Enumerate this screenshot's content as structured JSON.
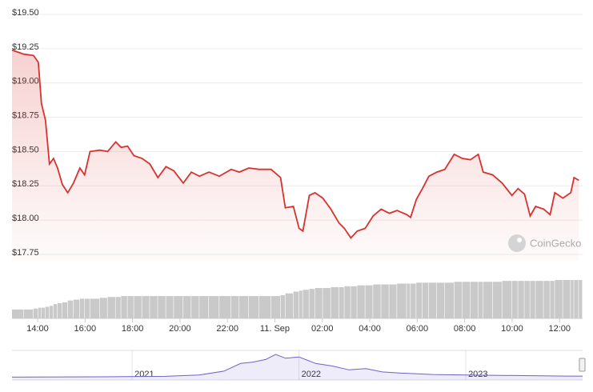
{
  "chart_data": [
    {
      "type": "line",
      "color": "#d8322e",
      "watermark": "CoinGecko",
      "grid": true,
      "x": [
        12.92,
        13.42,
        13.83,
        14.03,
        14.16,
        14.33,
        14.5,
        14.67,
        14.84,
        15.04,
        15.27,
        15.51,
        15.78,
        15.98,
        16.21,
        16.62,
        16.95,
        17.29,
        17.52,
        17.79,
        18.06,
        18.4,
        18.73,
        19.07,
        19.41,
        19.74,
        20.14,
        20.48,
        20.82,
        21.22,
        21.66,
        22.16,
        22.5,
        22.9,
        23.34,
        23.84,
        24.24,
        24.44,
        24.78,
        25.02,
        25.18,
        25.45,
        25.69,
        26.02,
        26.36,
        26.7,
        26.93,
        27.2,
        27.47,
        27.81,
        28.14,
        28.48,
        28.82,
        29.15,
        29.56,
        29.72,
        29.96,
        30.22,
        30.49,
        30.83,
        31.16,
        31.56,
        31.9,
        32.24,
        32.57,
        32.78,
        33.18,
        33.58,
        33.99,
        34.25,
        34.52,
        34.76,
        34.99,
        35.33,
        35.6,
        35.8,
        36.14,
        36.47,
        36.61,
        36.81
      ],
      "values": [
        19.24,
        19.21,
        19.2,
        19.15,
        18.85,
        18.73,
        18.41,
        18.45,
        18.38,
        18.26,
        18.2,
        18.27,
        18.38,
        18.33,
        18.5,
        18.51,
        18.5,
        18.57,
        18.53,
        18.54,
        18.47,
        18.45,
        18.41,
        18.31,
        18.39,
        18.36,
        18.27,
        18.35,
        18.32,
        18.35,
        18.32,
        18.37,
        18.35,
        18.38,
        18.37,
        18.37,
        18.31,
        18.09,
        18.1,
        17.94,
        17.92,
        18.18,
        18.2,
        18.16,
        18.08,
        17.98,
        17.94,
        17.87,
        17.92,
        17.94,
        18.03,
        18.08,
        18.05,
        18.07,
        18.04,
        18.02,
        18.15,
        18.23,
        18.32,
        18.35,
        18.37,
        18.48,
        18.45,
        18.44,
        18.48,
        18.35,
        18.33,
        18.27,
        18.18,
        18.23,
        18.19,
        18.03,
        18.1,
        18.08,
        18.04,
        18.2,
        18.16,
        18.2,
        18.31,
        18.29
      ],
      "volume": {
        "color": "#c9c9c9",
        "values": [
          10,
          10,
          11,
          12,
          12,
          13,
          14,
          16,
          17,
          18,
          20,
          21,
          22,
          22,
          22,
          23,
          24,
          24,
          25,
          25,
          25,
          25,
          25,
          25,
          25,
          25,
          25,
          25,
          25,
          25,
          25,
          25,
          25,
          25,
          25,
          25,
          26,
          28,
          30,
          31,
          32,
          33,
          34,
          34,
          35,
          35,
          36,
          36,
          37,
          37,
          38,
          38,
          38,
          39,
          39,
          39,
          40,
          40,
          40,
          40,
          40,
          41,
          41,
          41,
          41,
          41,
          41,
          42,
          42,
          42,
          42,
          42,
          42,
          42,
          42,
          43,
          43,
          43,
          43,
          43
        ]
      },
      "xlim": [
        12.92,
        36.97
      ],
      "xticks": [
        {
          "value": 14,
          "label": "14:00"
        },
        {
          "value": 16,
          "label": "16:00"
        },
        {
          "value": 18,
          "label": "18:00"
        },
        {
          "value": 20,
          "label": "20:00"
        },
        {
          "value": 22,
          "label": "22:00"
        },
        {
          "value": 24,
          "label": "11. Sep"
        },
        {
          "value": 26,
          "label": "02:00"
        },
        {
          "value": 28,
          "label": "04:00"
        },
        {
          "value": 30,
          "label": "06:00"
        },
        {
          "value": 32,
          "label": "08:00"
        },
        {
          "value": 34,
          "label": "10:00"
        },
        {
          "value": 36,
          "label": "12:00"
        }
      ],
      "ylim": [
        17.75,
        19.5
      ],
      "yticks": [
        {
          "value": 17.75,
          "label": "$17.75"
        },
        {
          "value": 18,
          "label": "$18.00"
        },
        {
          "value": 18.25,
          "label": "$18.25"
        },
        {
          "value": 18.5,
          "label": "$18.50"
        },
        {
          "value": 18.75,
          "label": "$18.75"
        },
        {
          "value": 19,
          "label": "$19.00"
        },
        {
          "value": 19.25,
          "label": "$19.25"
        },
        {
          "value": 19.5,
          "label": "$19.50"
        }
      ]
    },
    {
      "type": "area",
      "color": "#6c63c7",
      "x": [
        2020.28,
        2020.8,
        2021.2,
        2021.4,
        2021.55,
        2021.65,
        2021.72,
        2021.8,
        2021.86,
        2021.92,
        2022.0,
        2022.1,
        2022.2,
        2022.3,
        2022.4,
        2022.5,
        2022.6,
        2022.8,
        2023.0,
        2023.3,
        2023.6,
        2023.7
      ],
      "values": [
        2,
        3,
        5,
        10,
        25,
        55,
        60,
        70,
        90,
        75,
        80,
        55,
        45,
        30,
        35,
        22,
        18,
        12,
        10,
        8,
        6,
        6
      ],
      "xlim": [
        2020.28,
        2023.7
      ],
      "xticks": [
        2021,
        2022,
        2023
      ]
    }
  ]
}
